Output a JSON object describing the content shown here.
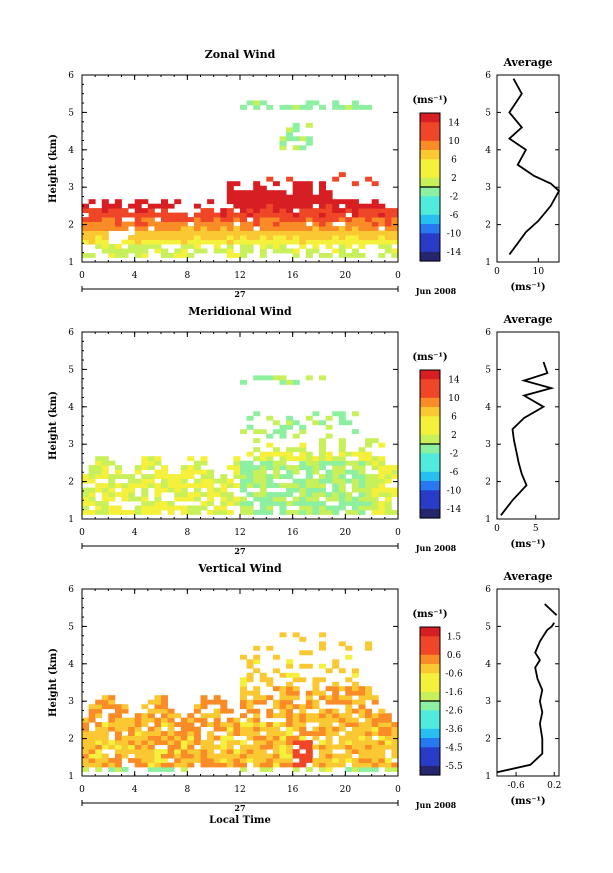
{
  "panels": [
    {
      "title": "Zonal Wind",
      "ylabel": "Height (km)",
      "colorbar": {
        "unit": "(ms⁻¹)",
        "ticks": [
          "14",
          "10",
          "6",
          "2",
          "-2",
          "-6",
          "-10",
          "-14"
        ]
      },
      "avg": {
        "title": "Average",
        "xticks": [
          "0",
          "10"
        ],
        "xlabel": "(ms⁻¹)"
      }
    },
    {
      "title": "Meridional Wind",
      "ylabel": "Height (km)",
      "colorbar": {
        "unit": "(ms⁻¹)",
        "ticks": [
          "14",
          "10",
          "6",
          "2",
          "-2",
          "-6",
          "-10",
          "-14"
        ]
      },
      "avg": {
        "title": "Average",
        "xticks": [
          "0",
          "5"
        ],
        "xlabel": "(ms⁻¹)"
      }
    },
    {
      "title": "Vertical Wind",
      "ylabel": "Height (km)",
      "colorbar": {
        "unit": "(ms⁻¹)",
        "ticks": [
          "1.5",
          "0.6",
          "-0.6",
          "-1.6",
          "-2.6",
          "-3.6",
          "-4.5",
          "-5.5"
        ]
      },
      "avg": {
        "title": "Average",
        "xticks": [
          "-0.6",
          "0.2"
        ],
        "xlabel": "(ms⁻¹)"
      }
    }
  ],
  "xticks": [
    "0",
    "4",
    "8",
    "12",
    "16",
    "20",
    "0"
  ],
  "yticks": [
    "1",
    "2",
    "3",
    "4",
    "5",
    "6"
  ],
  "day_label": "27",
  "date_label": "Jun 2008",
  "xlabel": "Local Time",
  "chart_data": [
    {
      "type": "heatmap",
      "title": "Zonal Wind",
      "xlabel": "",
      "ylabel": "Height (km)",
      "xlim": [
        0,
        24
      ],
      "ylim": [
        1,
        6
      ],
      "colorbar": {
        "unit": "ms-1",
        "range": [
          -16,
          16
        ]
      },
      "summary": "strong eastward winds (up to ~14) near 2.0-2.8 km, weaker (~4-8) below 2 km, sparse echoes near 4-5.3 km after 12 LT"
    },
    {
      "type": "line",
      "title": "Average",
      "xlabel": "(ms-1)",
      "xlim": [
        0,
        15
      ],
      "ylim": [
        1,
        6
      ],
      "series": [
        {
          "x": [
            3,
            5,
            7,
            10,
            13,
            15,
            13,
            9,
            5,
            7,
            3,
            6,
            3,
            6,
            4
          ],
          "y": [
            1.2,
            1.5,
            1.8,
            2.1,
            2.5,
            2.9,
            3.1,
            3.3,
            3.6,
            4.0,
            4.3,
            4.6,
            5.0,
            5.5,
            5.9
          ]
        }
      ]
    },
    {
      "type": "heatmap",
      "title": "Meridional Wind",
      "xlabel": "",
      "ylabel": "Height (km)",
      "xlim": [
        0,
        24
      ],
      "ylim": [
        1,
        6
      ],
      "colorbar": {
        "unit": "ms-1",
        "range": [
          -16,
          16
        ]
      },
      "summary": "weak northward winds (~2-6) below 3 km, sparse echoes near 3.2-4.8 km after 12 LT"
    },
    {
      "type": "line",
      "title": "Average",
      "xlabel": "(ms-1)",
      "xlim": [
        0,
        8
      ],
      "ylim": [
        1,
        6
      ],
      "series": [
        {
          "x": [
            0.5,
            2,
            3.8,
            3.2,
            2.8,
            2.5,
            2.2,
            2,
            3.5,
            6,
            3.5,
            7,
            3.5,
            6.5,
            6
          ],
          "y": [
            1.1,
            1.5,
            1.9,
            2.2,
            2.5,
            2.8,
            3.1,
            3.4,
            3.7,
            4.0,
            4.3,
            4.5,
            4.7,
            4.9,
            5.2
          ]
        }
      ]
    },
    {
      "type": "heatmap",
      "title": "Vertical Wind",
      "xlabel": "Local Time",
      "ylabel": "Height (km)",
      "xlim": [
        0,
        24
      ],
      "ylim": [
        1,
        6
      ],
      "colorbar": {
        "unit": "ms-1",
        "range": [
          -6.5,
          2
        ]
      },
      "summary": "small positive to near-zero vertical winds below 3.5 km, sparse echoes aloft after 12 LT"
    },
    {
      "type": "line",
      "title": "Average",
      "xlabel": "(ms-1)",
      "xlim": [
        -1.0,
        0.3
      ],
      "ylim": [
        1,
        6
      ],
      "series": [
        {
          "x": [
            -1.0,
            -0.3,
            -0.05,
            -0.05,
            -0.1,
            -0.05,
            -0.1,
            -0.05,
            -0.15,
            -0.2,
            -0.1,
            -0.2,
            -0.1,
            0.05,
            0.15,
            0.2
          ],
          "y": [
            1.1,
            1.3,
            1.6,
            2.0,
            2.4,
            2.7,
            3.0,
            3.3,
            3.6,
            3.9,
            4.1,
            4.3,
            4.6,
            4.9,
            5.0,
            5.1
          ]
        },
        {
          "x": [
            0.0,
            0.25
          ],
          "y": [
            5.6,
            5.3
          ]
        }
      ]
    }
  ]
}
